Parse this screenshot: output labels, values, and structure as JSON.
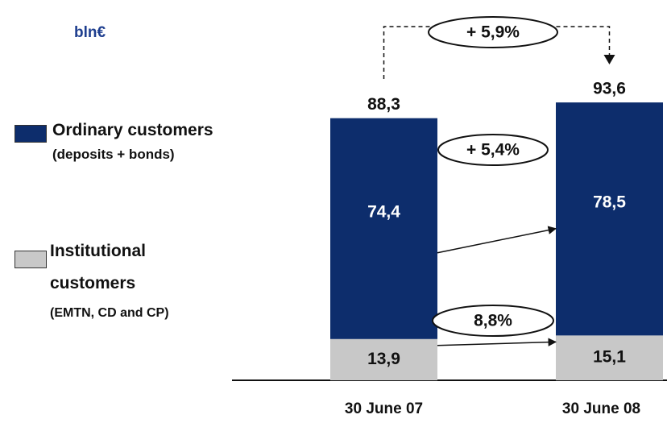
{
  "chart_data": {
    "type": "stacked_bar",
    "subtitle": "bln€",
    "categories": [
      "30 June 07",
      "30 June 08"
    ],
    "series": [
      {
        "name": "Institutional customers",
        "note": "(EMTN, CD and CP)",
        "color": "#c8c8c8",
        "values": [
          13.9,
          15.1
        ],
        "value_labels": [
          "13,9",
          "15,1"
        ],
        "growth": "8,8%"
      },
      {
        "name": "Ordinary customers",
        "note": "(deposits + bonds)",
        "color": "#0d2d6c",
        "values": [
          74.4,
          78.5
        ],
        "value_labels": [
          "74,4",
          "78,5"
        ],
        "growth": "+ 5,4%"
      }
    ],
    "totals": [
      88.3,
      93.6
    ],
    "total_labels": [
      "88,3",
      "93,6"
    ],
    "total_growth": "+ 5,9%",
    "ylim": [
      0,
      95
    ]
  }
}
